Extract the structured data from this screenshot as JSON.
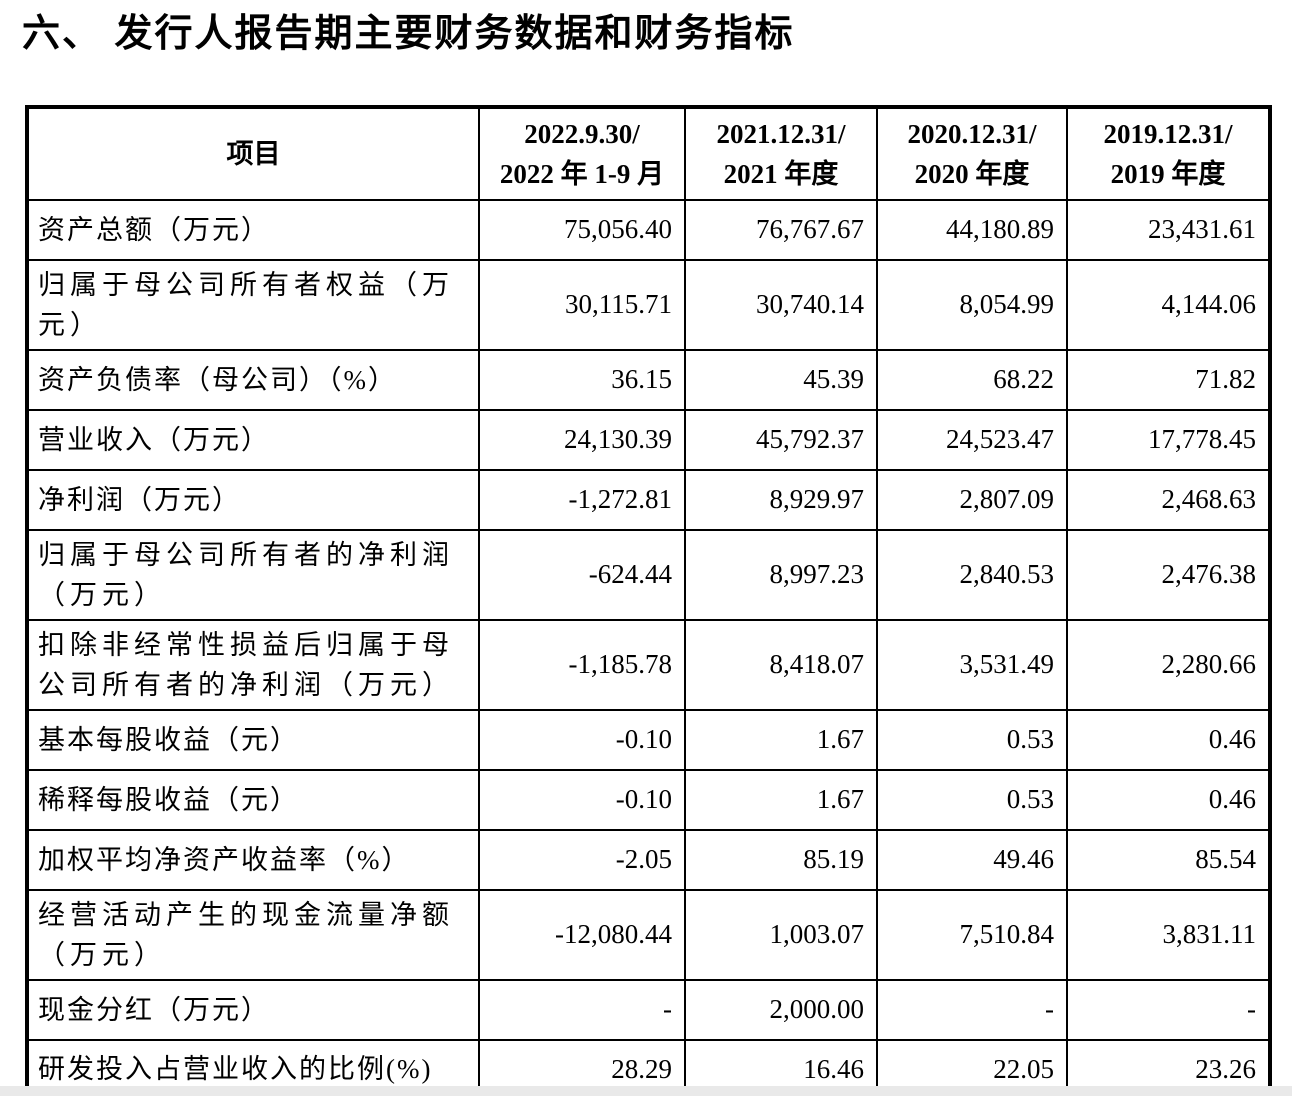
{
  "page": {
    "title": "六、 发行人报告期主要财务数据和财务指标",
    "edge_color": "#e9e9e9",
    "text_color": "#000000"
  },
  "table": {
    "item_header": "项目",
    "period_headers": [
      {
        "line1": "2022.9.30/",
        "line2": "2022 年 1-9 月"
      },
      {
        "line1": "2021.12.31/",
        "line2": "2021 年度"
      },
      {
        "line1": "2020.12.31/",
        "line2": "2020 年度"
      },
      {
        "line1": "2019.12.31/",
        "line2": "2019 年度"
      }
    ],
    "rows": [
      {
        "label": "资产总额（万元）",
        "tall": false,
        "values": [
          "75,056.40",
          "76,767.67",
          "44,180.89",
          "23,431.61"
        ]
      },
      {
        "label": "归属于母公司所有者权益（万元）",
        "tall": true,
        "values": [
          "30,115.71",
          "30,740.14",
          "8,054.99",
          "4,144.06"
        ]
      },
      {
        "label": "资产负债率（母公司）（%）",
        "tall": false,
        "values": [
          "36.15",
          "45.39",
          "68.22",
          "71.82"
        ]
      },
      {
        "label": "营业收入（万元）",
        "tall": false,
        "values": [
          "24,130.39",
          "45,792.37",
          "24,523.47",
          "17,778.45"
        ]
      },
      {
        "label": "净利润（万元）",
        "tall": false,
        "values": [
          "-1,272.81",
          "8,929.97",
          "2,807.09",
          "2,468.63"
        ]
      },
      {
        "label": "归属于母公司所有者的净利润（万元）",
        "tall": true,
        "values": [
          "-624.44",
          "8,997.23",
          "2,840.53",
          "2,476.38"
        ]
      },
      {
        "label": "扣除非经常性损益后归属于母公司所有者的净利润（万元）",
        "tall": true,
        "values": [
          "-1,185.78",
          "8,418.07",
          "3,531.49",
          "2,280.66"
        ]
      },
      {
        "label": "基本每股收益（元）",
        "tall": false,
        "values": [
          "-0.10",
          "1.67",
          "0.53",
          "0.46"
        ]
      },
      {
        "label": "稀释每股收益（元）",
        "tall": false,
        "values": [
          "-0.10",
          "1.67",
          "0.53",
          "0.46"
        ]
      },
      {
        "label": "加权平均净资产收益率（%）",
        "tall": false,
        "values": [
          "-2.05",
          "85.19",
          "49.46",
          "85.54"
        ]
      },
      {
        "label": "经营活动产生的现金流量净额（万元）",
        "tall": true,
        "values": [
          "-12,080.44",
          "1,003.07",
          "7,510.84",
          "3,831.11"
        ]
      },
      {
        "label": "现金分红（万元）",
        "tall": false,
        "values": [
          "-",
          "2,000.00",
          "-",
          "-"
        ]
      },
      {
        "label": "研发投入占营业收入的比例(%)",
        "tall": false,
        "values": [
          "28.29",
          "16.46",
          "22.05",
          "23.26"
        ]
      }
    ]
  }
}
